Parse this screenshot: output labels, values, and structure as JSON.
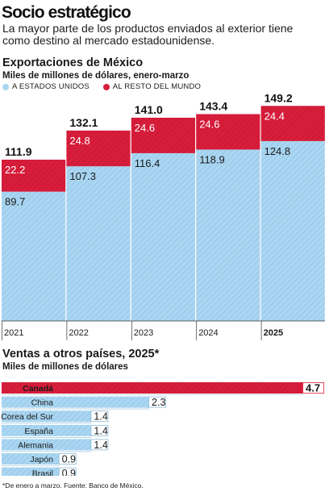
{
  "headline": "Socio estratégico",
  "subtitle": "La mayor parte de los productos enviados al exterior tiene como destino al mercado estadounidense.",
  "chart1": {
    "title": "Exportaciones de México",
    "subtitle": "Miles de millones de dólares, enero-marzo",
    "legend": [
      {
        "label": "A ESTADOS UNIDOS",
        "color": "#a9d6f2"
      },
      {
        "label": "AL RESTO DEL MUNDO",
        "color": "#d81d3b"
      }
    ]
  },
  "chart2": {
    "title": "Ventas a otros países, 2025*",
    "subtitle": "Miles de millones de dólares"
  },
  "footnote": "*De enero a marzo. Fuente: Banco de México.",
  "chart_data": [
    {
      "type": "bar",
      "stacked": true,
      "title": "Exportaciones de México",
      "subtitle": "Miles de millones de dólares, enero-marzo",
      "categories": [
        "2021",
        "2022",
        "2023",
        "2024",
        "2025"
      ],
      "series": [
        {
          "name": "A ESTADOS UNIDOS",
          "color": "#a9d6f2",
          "values": [
            89.7,
            107.3,
            116.4,
            118.9,
            124.8
          ],
          "labels": [
            "89.7",
            "107.3",
            "116.4",
            "118.9",
            "124.8"
          ]
        },
        {
          "name": "AL RESTO DEL MUNDO",
          "color": "#d81d3b",
          "values": [
            22.2,
            24.8,
            24.6,
            24.6,
            24.4
          ],
          "labels": [
            "22.2",
            "24.8",
            "24.6",
            "24.6",
            "24.4"
          ]
        }
      ],
      "totals": [
        "111.9",
        "132.1",
        "141.0",
        "143.4",
        "149.2"
      ],
      "ylim": [
        0,
        160
      ],
      "highlight": "2025",
      "grid": false
    },
    {
      "type": "bar",
      "orientation": "horizontal",
      "title": "Ventas a otros países, 2025*",
      "subtitle": "Miles de millones de dólares",
      "categories": [
        "Canadá",
        "China",
        "Corea del Sur",
        "España",
        "Alemania",
        "Japón",
        "Brasil"
      ],
      "values": [
        4.7,
        2.3,
        1.4,
        1.4,
        1.4,
        0.9,
        0.9
      ],
      "labels": [
        "4.7",
        "2.3",
        "1.4",
        "1.4",
        "1.4",
        "0.9",
        "0.9"
      ],
      "highlight": "Canadá",
      "colors": {
        "highlight": "#d81d3b",
        "default": "#a9d6f2"
      },
      "xlim": [
        0,
        4.7
      ]
    }
  ]
}
